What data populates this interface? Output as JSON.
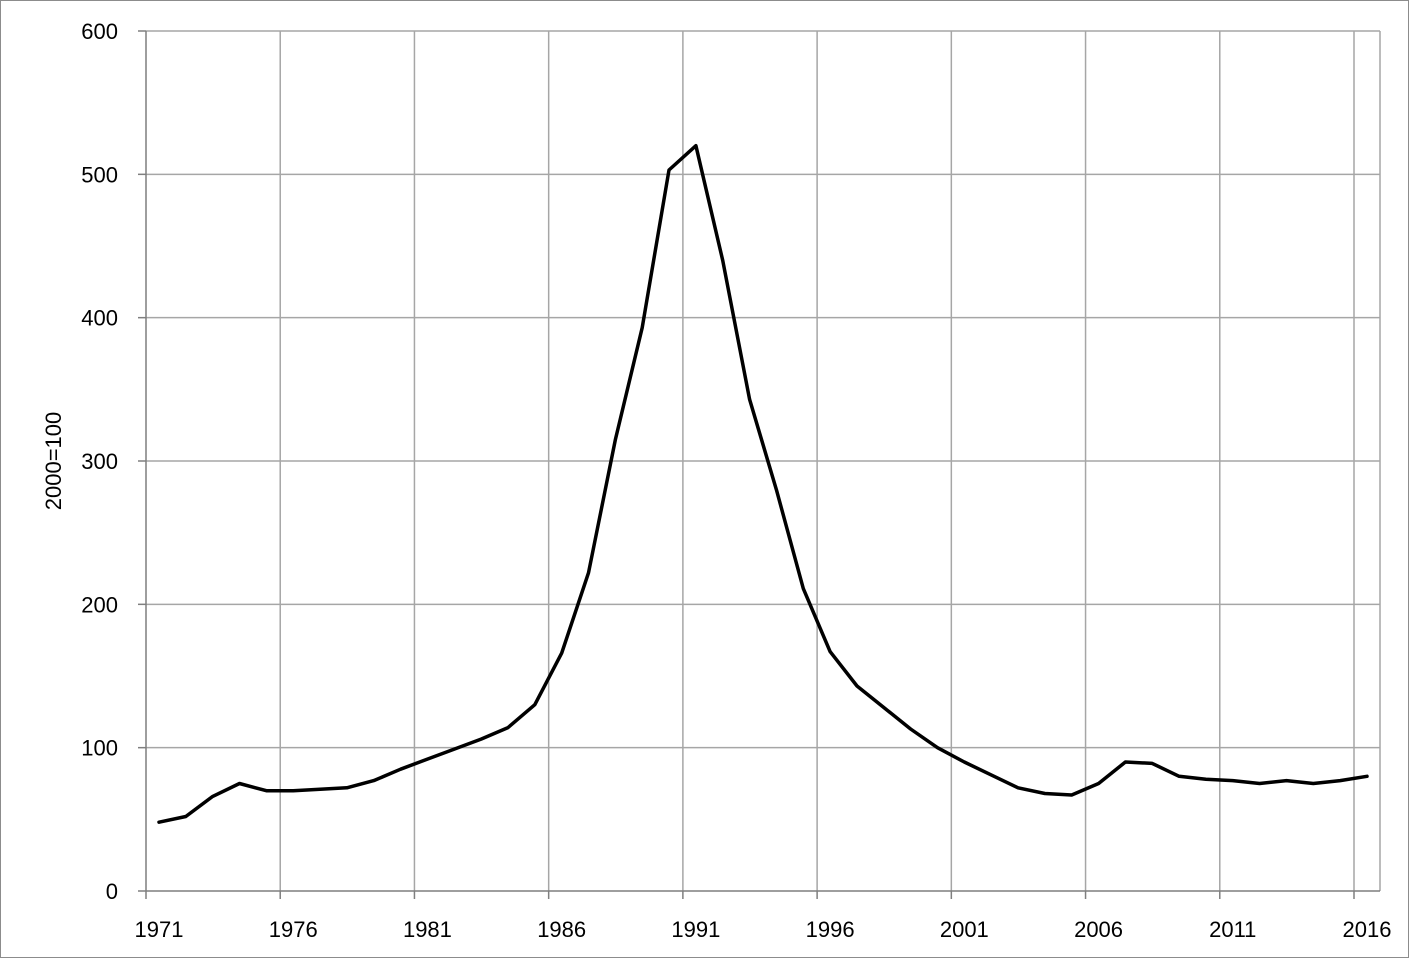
{
  "chart_data": {
    "type": "line",
    "title": "",
    "xlabel": "",
    "ylabel": "2000=100",
    "xlim": [
      1971,
      2016
    ],
    "ylim": [
      0,
      600
    ],
    "grid": true,
    "legend": "none",
    "line_color": "#000000",
    "y_ticks": [
      0,
      100,
      200,
      300,
      400,
      500,
      600
    ],
    "x_tick_labels": [
      "1971",
      "1976",
      "1981",
      "1986",
      "1991",
      "1996",
      "2001",
      "2006",
      "2011",
      "2016"
    ],
    "series": [
      {
        "x": [
          1971,
          1972,
          1973,
          1974,
          1975,
          1976,
          1977,
          1978,
          1979,
          1980,
          1981,
          1982,
          1983,
          1984,
          1985,
          1986,
          1987,
          1988,
          1989,
          1990,
          1991,
          1992,
          1993,
          1994,
          1995,
          1996,
          1997,
          1998,
          1999,
          2000,
          2001,
          2002,
          2003,
          2004,
          2005,
          2006,
          2007,
          2008,
          2009,
          2010,
          2011,
          2012,
          2013,
          2014,
          2015,
          2016
        ],
        "values": [
          48,
          52,
          66,
          75,
          70,
          70,
          71,
          72,
          77,
          85,
          92,
          99,
          106,
          114,
          130,
          166,
          222,
          315,
          393,
          503,
          520,
          440,
          343,
          280,
          211,
          167,
          143,
          128,
          113,
          100,
          90,
          81,
          72,
          68,
          67,
          75,
          90,
          89,
          80,
          78,
          77,
          75,
          77,
          75,
          77,
          80
        ]
      }
    ]
  }
}
